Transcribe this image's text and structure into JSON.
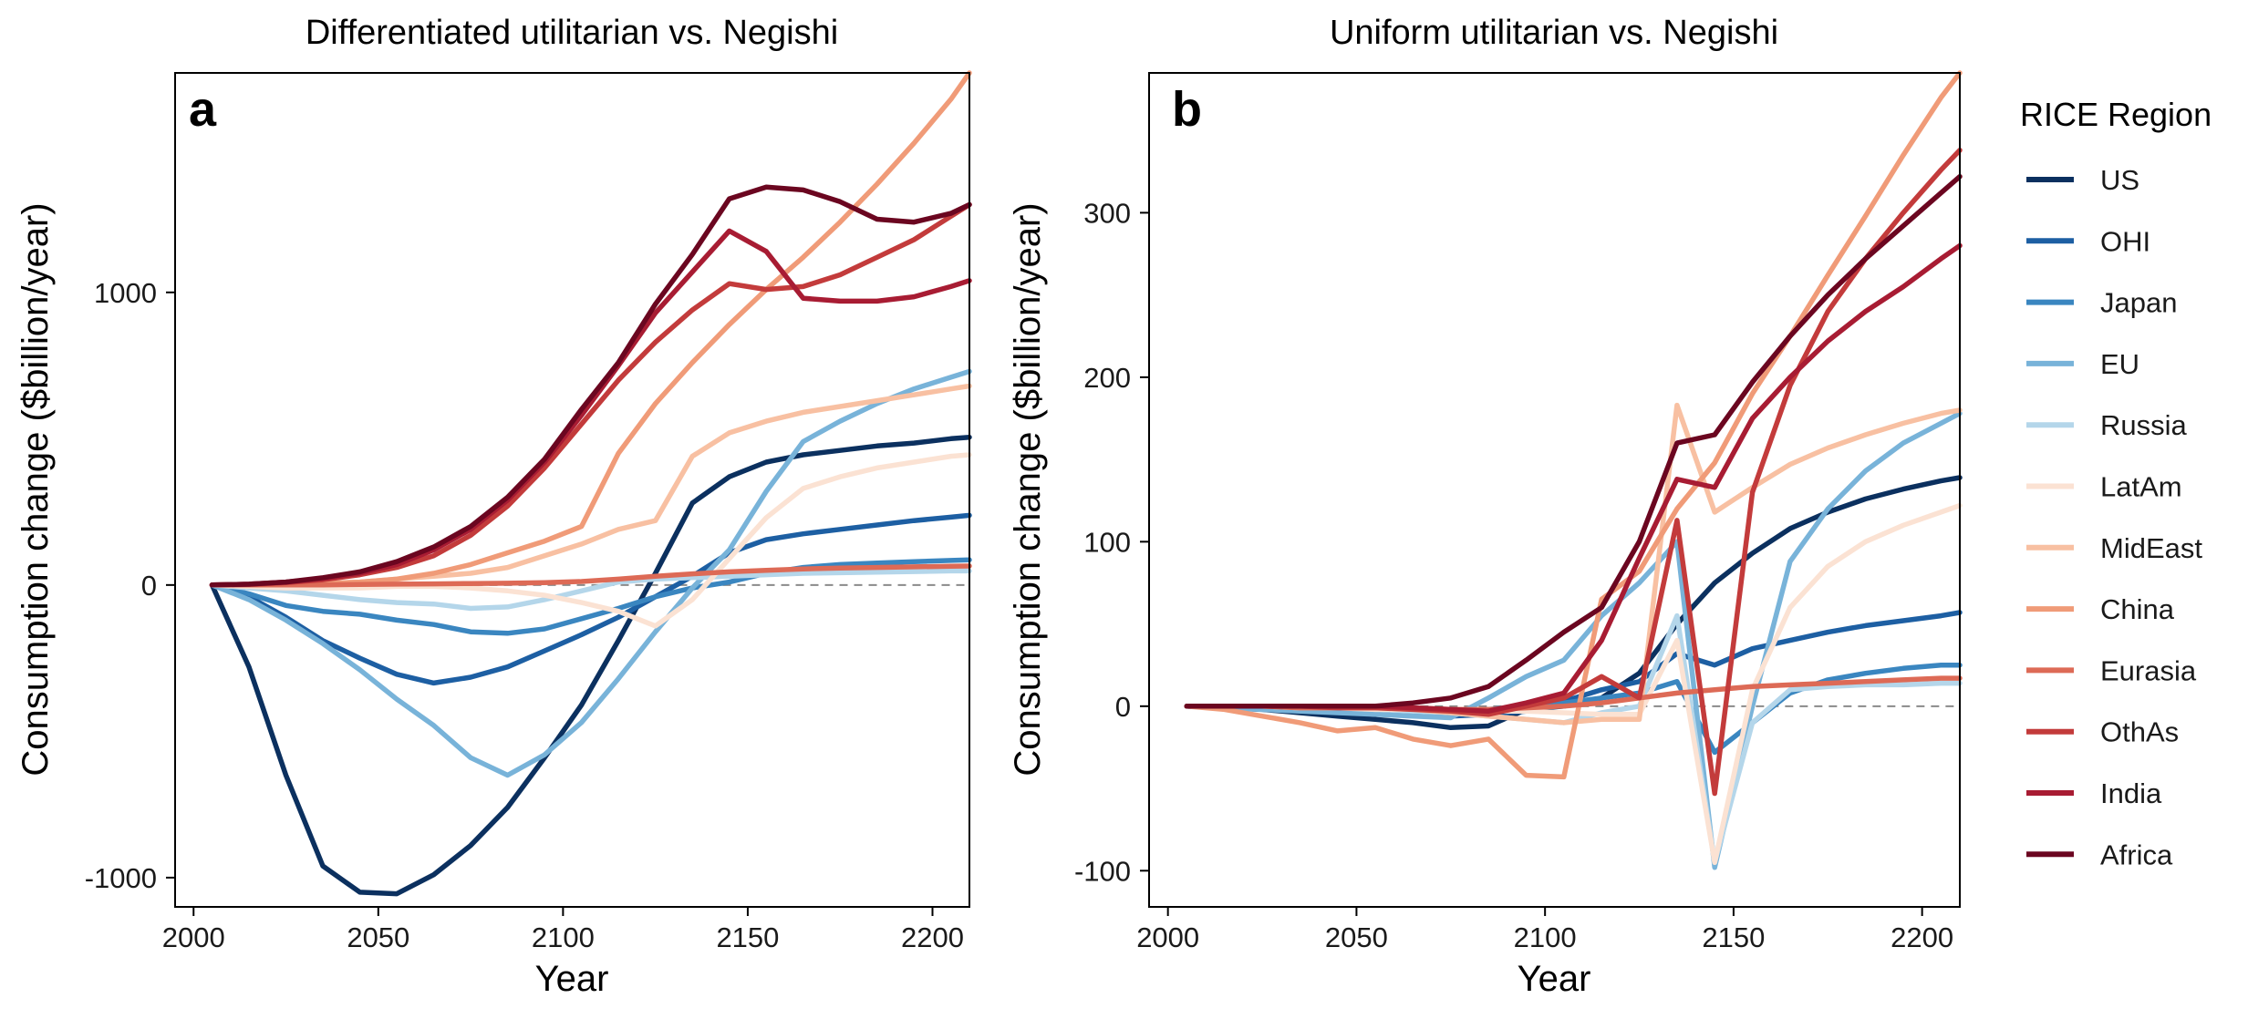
{
  "chart_data": [
    {
      "type": "line",
      "panel_letter": "a",
      "title": "Differentiated utilitarian vs. Negishi",
      "xlabel": "Year",
      "ylabel": "Consumption change ($billion/year)",
      "xlim": [
        1995,
        2210
      ],
      "ylim": [
        -1100,
        1750
      ],
      "xticks": [
        2000,
        2050,
        2100,
        2150,
        2200
      ],
      "yticks": [
        -1000,
        0,
        1000
      ],
      "ytick_labels": [
        "-1000",
        "0",
        "1000"
      ],
      "reference_line": 0,
      "x": [
        2005,
        2015,
        2025,
        2035,
        2045,
        2055,
        2065,
        2075,
        2085,
        2095,
        2105,
        2115,
        2125,
        2135,
        2145,
        2155,
        2165,
        2175,
        2185,
        2195,
        2205,
        2210
      ],
      "series": [
        {
          "name": "US",
          "values": [
            0,
            -280,
            -650,
            -960,
            -1050,
            -1055,
            -990,
            -890,
            -760,
            -590,
            -410,
            -190,
            40,
            280,
            370,
            420,
            445,
            460,
            475,
            485,
            500,
            505
          ]
        },
        {
          "name": "OHI",
          "values": [
            0,
            -40,
            -110,
            -190,
            -250,
            -305,
            -335,
            -315,
            -280,
            -225,
            -170,
            -110,
            -40,
            30,
            110,
            155,
            175,
            190,
            205,
            220,
            232,
            238
          ]
        },
        {
          "name": "Japan",
          "values": [
            0,
            -30,
            -70,
            -90,
            -100,
            -120,
            -135,
            -160,
            -165,
            -150,
            -115,
            -80,
            -40,
            -10,
            10,
            40,
            60,
            70,
            75,
            80,
            84,
            86
          ]
        },
        {
          "name": "EU",
          "values": [
            0,
            -50,
            -120,
            -200,
            -290,
            -390,
            -480,
            -590,
            -650,
            -580,
            -470,
            -320,
            -160,
            -10,
            120,
            320,
            490,
            560,
            620,
            670,
            710,
            730
          ]
        },
        {
          "name": "Russia",
          "values": [
            0,
            -10,
            -20,
            -35,
            -50,
            -60,
            -65,
            -80,
            -75,
            -50,
            -20,
            10,
            20,
            25,
            30,
            35,
            40,
            42,
            44,
            46,
            48,
            48
          ]
        },
        {
          "name": "LatAm",
          "values": [
            0,
            -5,
            -10,
            -10,
            -10,
            -5,
            -5,
            -10,
            -20,
            -35,
            -60,
            -90,
            -140,
            -50,
            90,
            230,
            330,
            370,
            400,
            420,
            440,
            445
          ]
        },
        {
          "name": "MidEast",
          "values": [
            0,
            0,
            0,
            5,
            10,
            20,
            30,
            40,
            60,
            100,
            140,
            190,
            220,
            440,
            520,
            560,
            590,
            610,
            630,
            650,
            670,
            680
          ]
        },
        {
          "name": "China",
          "values": [
            0,
            0,
            0,
            5,
            10,
            20,
            40,
            70,
            110,
            150,
            200,
            450,
            620,
            760,
            890,
            1010,
            1120,
            1240,
            1370,
            1510,
            1660,
            1750
          ]
        },
        {
          "name": "Eurasia",
          "values": [
            0,
            0,
            0,
            0,
            2,
            3,
            4,
            5,
            6,
            8,
            12,
            20,
            30,
            38,
            45,
            50,
            55,
            58,
            60,
            62,
            64,
            65
          ]
        },
        {
          "name": "OthAs",
          "values": [
            0,
            2,
            8,
            18,
            35,
            60,
            100,
            170,
            270,
            400,
            550,
            700,
            830,
            940,
            1030,
            1010,
            1020,
            1060,
            1120,
            1180,
            1260,
            1300
          ]
        },
        {
          "name": "India",
          "values": [
            0,
            3,
            10,
            22,
            40,
            70,
            120,
            190,
            290,
            420,
            580,
            750,
            930,
            1070,
            1210,
            1140,
            980,
            970,
            970,
            985,
            1020,
            1040
          ]
        },
        {
          "name": "Africa",
          "values": [
            0,
            3,
            10,
            25,
            45,
            80,
            130,
            200,
            300,
            430,
            600,
            760,
            960,
            1130,
            1320,
            1360,
            1350,
            1310,
            1250,
            1240,
            1270,
            1300
          ]
        }
      ]
    },
    {
      "type": "line",
      "panel_letter": "b",
      "title": "Uniform utilitarian vs. Negishi",
      "xlabel": "Year",
      "ylabel": "Consumption change ($billion/year)",
      "xlim": [
        1995,
        2210
      ],
      "ylim": [
        -122,
        385
      ],
      "xticks": [
        2000,
        2050,
        2100,
        2150,
        2200
      ],
      "yticks": [
        -100,
        0,
        100,
        200,
        300
      ],
      "ytick_labels": [
        "-100",
        "0",
        "100",
        "200",
        "300"
      ],
      "reference_line": 0,
      "x": [
        2005,
        2015,
        2025,
        2035,
        2045,
        2055,
        2065,
        2075,
        2085,
        2095,
        2105,
        2115,
        2125,
        2135,
        2145,
        2155,
        2165,
        2175,
        2185,
        2195,
        2205,
        2210
      ],
      "series": [
        {
          "name": "US",
          "values": [
            0,
            -1,
            -2,
            -4,
            -6,
            -8,
            -10,
            -13,
            -12,
            -2,
            0,
            5,
            20,
            50,
            75,
            93,
            108,
            118,
            126,
            132,
            137,
            139
          ]
        },
        {
          "name": "OHI",
          "values": [
            0,
            -1,
            -1,
            -2,
            -3,
            -4,
            -5,
            -6,
            -5,
            -3,
            3,
            10,
            15,
            32,
            25,
            35,
            40,
            45,
            49,
            52,
            55,
            57
          ]
        },
        {
          "name": "Japan",
          "values": [
            0,
            0,
            0,
            -1,
            -1,
            -2,
            -2,
            -3,
            -2,
            0,
            2,
            5,
            8,
            15,
            -28,
            -10,
            8,
            16,
            20,
            23,
            25,
            25
          ]
        },
        {
          "name": "EU",
          "values": [
            0,
            -1,
            -2,
            -3,
            -4,
            -5,
            -6,
            -7,
            5,
            18,
            28,
            55,
            75,
            100,
            -98,
            0,
            88,
            120,
            143,
            160,
            172,
            178
          ]
        },
        {
          "name": "Russia",
          "values": [
            0,
            0,
            0,
            -1,
            -1,
            -2,
            -3,
            -4,
            -6,
            -8,
            -10,
            -4,
            0,
            55,
            -95,
            -10,
            10,
            12,
            13,
            13,
            14,
            14
          ]
        },
        {
          "name": "LatAm",
          "values": [
            0,
            0,
            0,
            -1,
            -1,
            -2,
            -2,
            -3,
            -3,
            -3,
            -4,
            -5,
            -5,
            40,
            -95,
            10,
            60,
            85,
            100,
            110,
            118,
            122
          ]
        },
        {
          "name": "MidEast",
          "values": [
            0,
            0,
            0,
            -1,
            -1,
            -1,
            -2,
            -4,
            -6,
            -8,
            -10,
            -8,
            -8,
            183,
            118,
            133,
            147,
            157,
            165,
            172,
            178,
            180
          ]
        },
        {
          "name": "China",
          "values": [
            0,
            -2,
            -6,
            -10,
            -15,
            -13,
            -20,
            -24,
            -20,
            -42,
            -43,
            65,
            82,
            120,
            148,
            190,
            225,
            262,
            298,
            335,
            370,
            385
          ]
        },
        {
          "name": "Eurasia",
          "values": [
            0,
            0,
            0,
            -1,
            -1,
            -1,
            -1,
            -2,
            -2,
            -1,
            0,
            2,
            5,
            8,
            10,
            12,
            13,
            14,
            15,
            16,
            17,
            17
          ]
        },
        {
          "name": "OthAs",
          "values": [
            0,
            0,
            0,
            0,
            -1,
            -1,
            -2,
            -3,
            -5,
            0,
            5,
            18,
            5,
            113,
            -53,
            130,
            195,
            240,
            272,
            300,
            326,
            338
          ]
        },
        {
          "name": "India",
          "values": [
            0,
            0,
            0,
            0,
            0,
            0,
            -1,
            -2,
            -3,
            2,
            8,
            40,
            90,
            138,
            133,
            175,
            200,
            222,
            240,
            255,
            272,
            280
          ]
        },
        {
          "name": "Africa",
          "values": [
            0,
            0,
            0,
            0,
            0,
            0,
            2,
            5,
            12,
            28,
            45,
            60,
            100,
            160,
            165,
            197,
            225,
            250,
            272,
            292,
            312,
            322
          ]
        }
      ]
    }
  ],
  "legend": {
    "title": "RICE Region",
    "items": [
      {
        "name": "US",
        "color": "#0b305f"
      },
      {
        "name": "OHI",
        "color": "#1d5fa3"
      },
      {
        "name": "Japan",
        "color": "#3a86c0"
      },
      {
        "name": "EU",
        "color": "#78b3d9"
      },
      {
        "name": "Russia",
        "color": "#b4d6ea"
      },
      {
        "name": "LatAm",
        "color": "#fbe2d3"
      },
      {
        "name": "MidEast",
        "color": "#f8c0a2"
      },
      {
        "name": "China",
        "color": "#f09b78"
      },
      {
        "name": "Eurasia",
        "color": "#dd6a56"
      },
      {
        "name": "OthAs",
        "color": "#c33b3b"
      },
      {
        "name": "India",
        "color": "#a81c33"
      },
      {
        "name": "Africa",
        "color": "#6b0620"
      }
    ]
  }
}
